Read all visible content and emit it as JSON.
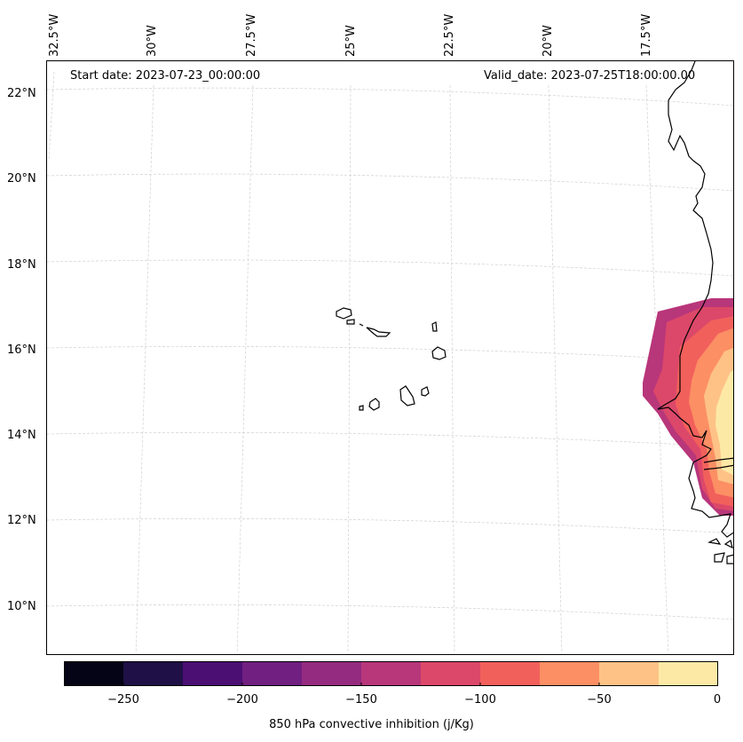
{
  "map": {
    "start_label": "Start date: 2023-07-23_00:00:00",
    "valid_label": "Valid_date: 2023-07-25T18:00:00.00",
    "lon_labels": [
      "32.5°W",
      "30°W",
      "27.5°W",
      "25°W",
      "22.5°W",
      "20°W",
      "17.5°W"
    ],
    "lat_labels": [
      "22°N",
      "20°N",
      "18°N",
      "16°N",
      "14°N",
      "12°N",
      "10°N"
    ]
  },
  "colorbar": {
    "title": "850 hPa convective inhibition (j/Kg)",
    "tick_labels": [
      "−250",
      "−200",
      "−150",
      "−100",
      "−50",
      "0"
    ],
    "bins": [
      -275,
      -250,
      -225,
      -200,
      -175,
      -150,
      -125,
      -100,
      -75,
      -50,
      -25,
      0
    ],
    "colors": [
      "#050416",
      "#1f1147",
      "#4b0f74",
      "#711f81",
      "#942b80",
      "#b8367a",
      "#dc4869",
      "#f2605c",
      "#fc8f64",
      "#fec287",
      "#fde9a6"
    ]
  },
  "colors": {
    "coastline": "#000000",
    "gridline": "#d0d0d0"
  }
}
